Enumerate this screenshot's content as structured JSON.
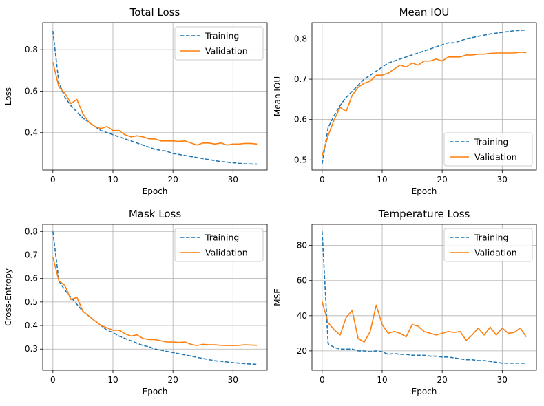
{
  "chart_data": [
    {
      "type": "line",
      "title": "Total Loss",
      "xlabel": "Epoch",
      "ylabel": "Loss",
      "xlim": [
        -1.7,
        35.7
      ],
      "ylim": [
        0.22,
        0.93
      ],
      "xticks": [
        0,
        10,
        20,
        30
      ],
      "yticks": [
        0.4,
        0.6,
        0.8
      ],
      "grid": true,
      "legend": "top-right",
      "series": [
        {
          "name": "Training",
          "color": "#1f77b4",
          "style": "dashed",
          "values": [
            0.89,
            0.64,
            0.57,
            0.53,
            0.5,
            0.47,
            0.45,
            0.43,
            0.41,
            0.4,
            0.39,
            0.38,
            0.37,
            0.36,
            0.35,
            0.34,
            0.33,
            0.32,
            0.315,
            0.31,
            0.3,
            0.295,
            0.29,
            0.285,
            0.28,
            0.275,
            0.27,
            0.265,
            0.26,
            0.258,
            0.255,
            0.252,
            0.25,
            0.249,
            0.248
          ]
        },
        {
          "name": "Validation",
          "color": "#ff7f0e",
          "style": "solid",
          "values": [
            0.74,
            0.62,
            0.59,
            0.54,
            0.56,
            0.49,
            0.45,
            0.43,
            0.42,
            0.43,
            0.41,
            0.41,
            0.39,
            0.38,
            0.385,
            0.38,
            0.37,
            0.37,
            0.36,
            0.36,
            0.36,
            0.358,
            0.36,
            0.35,
            0.34,
            0.35,
            0.35,
            0.345,
            0.35,
            0.34,
            0.345,
            0.345,
            0.348,
            0.348,
            0.345
          ]
        }
      ]
    },
    {
      "type": "line",
      "title": "Mean IOU",
      "xlabel": "Epoch",
      "ylabel": "Mean IOU",
      "xlim": [
        -1.7,
        35.7
      ],
      "ylim": [
        0.475,
        0.84
      ],
      "xticks": [
        0,
        10,
        20,
        30
      ],
      "yticks": [
        0.5,
        0.6,
        0.7,
        0.8
      ],
      "grid": true,
      "legend": "bottom-right",
      "series": [
        {
          "name": "Training",
          "color": "#1f77b4",
          "style": "dashed",
          "values": [
            0.49,
            0.58,
            0.61,
            0.635,
            0.655,
            0.67,
            0.685,
            0.7,
            0.71,
            0.72,
            0.73,
            0.74,
            0.745,
            0.75,
            0.755,
            0.76,
            0.765,
            0.77,
            0.775,
            0.78,
            0.785,
            0.79,
            0.79,
            0.795,
            0.8,
            0.803,
            0.806,
            0.809,
            0.812,
            0.814,
            0.816,
            0.818,
            0.82,
            0.821,
            0.822
          ]
        },
        {
          "name": "Validation",
          "color": "#ff7f0e",
          "style": "solid",
          "values": [
            0.51,
            0.56,
            0.6,
            0.63,
            0.62,
            0.66,
            0.68,
            0.69,
            0.695,
            0.71,
            0.71,
            0.715,
            0.725,
            0.735,
            0.73,
            0.74,
            0.735,
            0.745,
            0.745,
            0.75,
            0.745,
            0.755,
            0.755,
            0.755,
            0.76,
            0.76,
            0.762,
            0.762,
            0.764,
            0.765,
            0.765,
            0.765,
            0.765,
            0.767,
            0.766
          ]
        }
      ]
    },
    {
      "type": "line",
      "title": "Mask Loss",
      "xlabel": "Epoch",
      "ylabel": "Cross-Entropy",
      "xlim": [
        -1.7,
        35.7
      ],
      "ylim": [
        0.21,
        0.83
      ],
      "xticks": [
        0,
        10,
        20,
        30
      ],
      "yticks": [
        0.3,
        0.4,
        0.5,
        0.6,
        0.7,
        0.8
      ],
      "grid": true,
      "legend": "top-right",
      "series": [
        {
          "name": "Training",
          "color": "#1f77b4",
          "style": "dashed",
          "values": [
            0.8,
            0.59,
            0.55,
            0.52,
            0.49,
            0.46,
            0.44,
            0.42,
            0.4,
            0.38,
            0.37,
            0.355,
            0.345,
            0.335,
            0.325,
            0.315,
            0.31,
            0.3,
            0.295,
            0.29,
            0.285,
            0.28,
            0.275,
            0.27,
            0.265,
            0.26,
            0.255,
            0.25,
            0.248,
            0.245,
            0.242,
            0.24,
            0.238,
            0.236,
            0.235
          ]
        },
        {
          "name": "Validation",
          "color": "#ff7f0e",
          "style": "solid",
          "values": [
            0.69,
            0.59,
            0.57,
            0.51,
            0.52,
            0.46,
            0.44,
            0.42,
            0.4,
            0.39,
            0.38,
            0.38,
            0.365,
            0.355,
            0.36,
            0.345,
            0.34,
            0.34,
            0.335,
            0.33,
            0.33,
            0.328,
            0.33,
            0.32,
            0.315,
            0.32,
            0.318,
            0.318,
            0.316,
            0.315,
            0.315,
            0.316,
            0.318,
            0.317,
            0.316
          ]
        }
      ]
    },
    {
      "type": "line",
      "title": "Temperature Loss",
      "xlabel": "Epoch",
      "ylabel": "MSE",
      "xlim": [
        -1.7,
        35.7
      ],
      "ylim": [
        9,
        92
      ],
      "xticks": [
        0,
        10,
        20,
        30
      ],
      "yticks": [
        20,
        40,
        60,
        80
      ],
      "grid": true,
      "legend": "top-right",
      "series": [
        {
          "name": "Training",
          "color": "#1f77b4",
          "style": "dashed",
          "values": [
            88,
            24,
            22,
            21,
            21,
            21,
            20,
            20,
            19.5,
            20,
            19.5,
            18,
            18.5,
            18,
            18,
            17.5,
            17.5,
            17.5,
            17,
            17,
            16.5,
            16.5,
            16,
            15.5,
            15,
            15,
            14.5,
            14.5,
            14,
            13.5,
            13,
            13,
            13,
            13,
            13
          ]
        },
        {
          "name": "Validation",
          "color": "#ff7f0e",
          "style": "solid",
          "values": [
            48,
            36,
            32,
            29,
            39,
            43,
            27,
            25,
            31,
            46,
            35,
            30,
            31,
            30,
            28,
            35,
            34,
            31,
            30,
            29,
            30,
            31,
            30.5,
            31,
            26,
            29,
            33,
            29,
            33.5,
            29,
            33,
            30,
            30.5,
            33,
            28
          ]
        }
      ]
    }
  ]
}
